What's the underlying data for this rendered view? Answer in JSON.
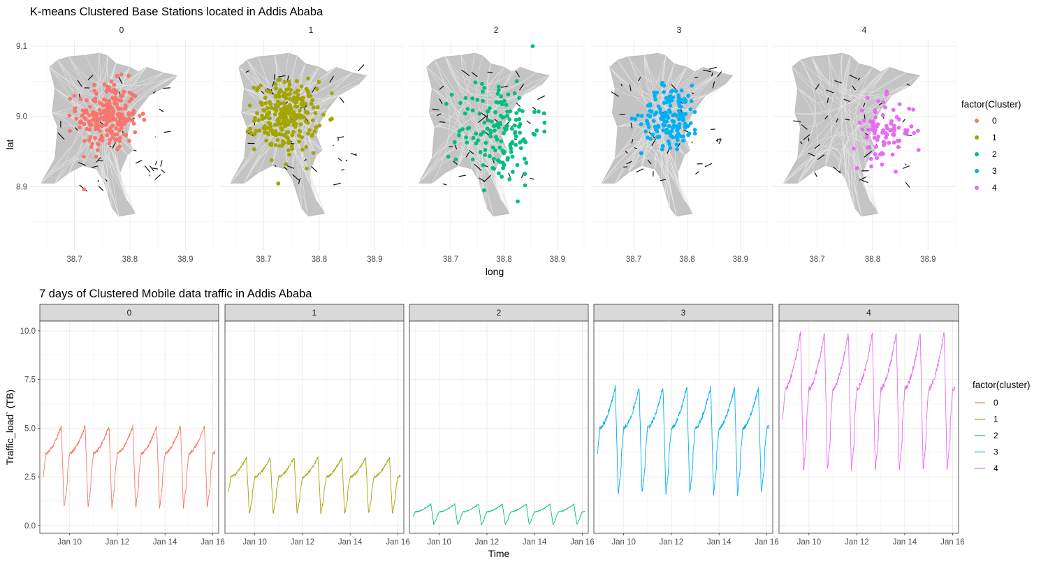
{
  "chart_data": [
    {
      "type": "scatter",
      "title": "K-means Clustered Base Stations located in Addis Ababa",
      "xlabel": "long",
      "ylabel": "lat",
      "facets": [
        "0",
        "1",
        "2",
        "3",
        "4"
      ],
      "xlim": [
        38.62,
        38.95
      ],
      "ylim": [
        8.81,
        9.11
      ],
      "xticks": [
        "38.7",
        "38.8",
        "38.9"
      ],
      "yticks": [
        "8.9",
        "9.0",
        "9.1"
      ],
      "grid": true,
      "legend_title": "factor(Cluster)",
      "legend_position": "right",
      "series": [
        {
          "name": "0",
          "color": "#F8766D",
          "center": [
            38.76,
            9.0
          ],
          "spread": [
            0.05,
            0.045
          ],
          "n": 230
        },
        {
          "name": "1",
          "color": "#A3A500",
          "center": [
            38.74,
            9.0
          ],
          "spread": [
            0.05,
            0.045
          ],
          "n": 260
        },
        {
          "name": "2",
          "color": "#00BF7D",
          "center": [
            38.79,
            8.98
          ],
          "spread": [
            0.07,
            0.07
          ],
          "n": 150
        },
        {
          "name": "3",
          "color": "#00B0F6",
          "center": [
            38.77,
            9.0
          ],
          "spread": [
            0.05,
            0.04
          ],
          "n": 150
        },
        {
          "name": "4",
          "color": "#E76BF3",
          "center": [
            38.82,
            8.98
          ],
          "spread": [
            0.05,
            0.04
          ],
          "n": 90
        }
      ]
    },
    {
      "type": "line",
      "title": "7 days of Clustered Mobile data traffic in Addis Ababa",
      "xlabel": "Time",
      "ylabel": "Traffic_load` (TB)",
      "facets": [
        "0",
        "1",
        "2",
        "3",
        "4"
      ],
      "xlim": [
        "2020-01-08 18:00",
        "2020-01-16 06:00"
      ],
      "xticks": [
        "Jan 10",
        "Jan 12",
        "Jan 14",
        "Jan 16"
      ],
      "ylim": [
        -0.4,
        10.5
      ],
      "yticks": [
        "0.0",
        "2.5",
        "5.0",
        "7.5",
        "10.0"
      ],
      "grid": true,
      "legend_title": "factor(cluster)",
      "legend_position": "right",
      "series": [
        {
          "name": "0",
          "color": "#F8766D",
          "low": 0.9,
          "base": 3.7,
          "peak": 5.1
        },
        {
          "name": "1",
          "color": "#A3A500",
          "low": 0.6,
          "base": 2.5,
          "peak": 3.5
        },
        {
          "name": "2",
          "color": "#00BF7D",
          "low": 0.05,
          "base": 0.7,
          "peak": 1.1
        },
        {
          "name": "3",
          "color": "#00B0F6",
          "low": 1.6,
          "base": 5.0,
          "peak": 7.1
        },
        {
          "name": "4",
          "color": "#E76BF3",
          "low": 2.8,
          "base": 7.0,
          "peak": 9.9
        }
      ]
    }
  ],
  "top_plot": {
    "title": "K-means Clustered Base Stations located in Addis Ababa",
    "xlabel": "long",
    "ylabel": "lat",
    "legend_title": "factor(Cluster)"
  },
  "bottom_plot": {
    "title": "7 days of Clustered Mobile data traffic in Addis Ababa",
    "xlabel": "Time",
    "ylabel": "Traffic_load` (TB)",
    "legend_title": "factor(cluster)"
  }
}
